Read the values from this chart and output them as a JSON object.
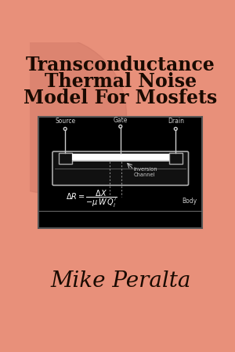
{
  "bg_color": "#E8907A",
  "title_line1": "Transconductance",
  "title_line2": "Thermal Noise",
  "title_line3": "Model For Mosfets",
  "author": "Mike Peralta",
  "title_fontsize": 17,
  "author_fontsize": 20,
  "diagram_bg": "#000000",
  "gate_label": "Gate",
  "source_label": "Source",
  "drain_label": "Drain",
  "body_label": "Body",
  "channel_label": "Inversion\nChannel"
}
